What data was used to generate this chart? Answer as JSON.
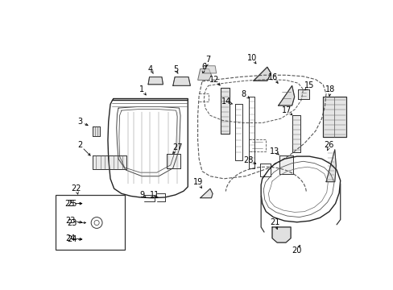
{
  "bg_color": "#ffffff",
  "line_color": "#333333",
  "label_fontsize": 7.0,
  "fig_width": 4.89,
  "fig_height": 3.6,
  "dpi": 100
}
